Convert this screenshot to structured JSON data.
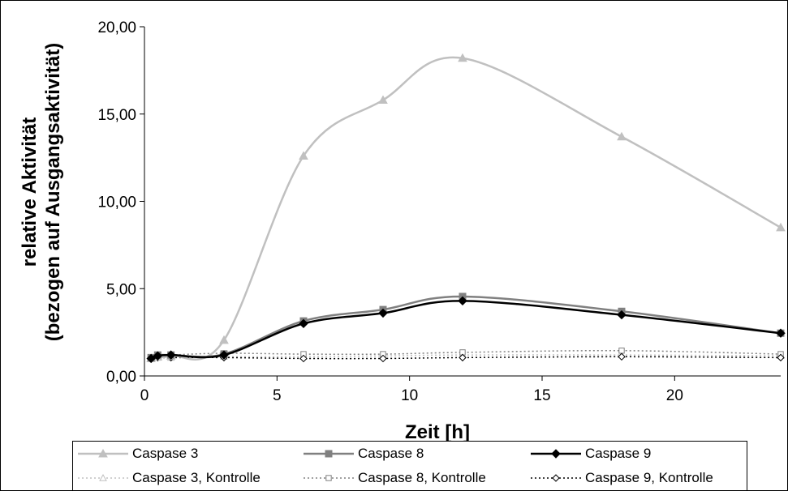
{
  "chart_data": {
    "type": "line",
    "title": "",
    "xlabel": "Zeit [h]",
    "ylabel_line1": "relative Aktivität",
    "ylabel_line2": "(bezogen auf Ausgangsaktivität)",
    "xlim": [
      0,
      24
    ],
    "ylim": [
      0,
      20
    ],
    "x_ticks": [
      0,
      5,
      10,
      15,
      20
    ],
    "y_ticks": [
      0,
      5,
      10,
      15,
      20
    ],
    "y_tick_labels": [
      "0,00",
      "5,00",
      "10,00",
      "15,00",
      "20,00"
    ],
    "grid": false,
    "legend_position": "bottom",
    "series": [
      {
        "name": "Caspase 3",
        "color": "#c0c0c0",
        "dash": "solid",
        "marker": "triangle-filled",
        "x": [
          0.25,
          0.5,
          1,
          3,
          6,
          9,
          12,
          18,
          24
        ],
        "y": [
          1.0,
          1.1,
          1.15,
          2.05,
          12.6,
          15.8,
          18.2,
          13.7,
          8.5
        ]
      },
      {
        "name": "Caspase 8",
        "color": "#808080",
        "dash": "solid",
        "marker": "square-filled",
        "x": [
          0.25,
          0.5,
          1,
          3,
          6,
          9,
          12,
          18,
          24
        ],
        "y": [
          1.05,
          1.2,
          1.2,
          1.25,
          3.15,
          3.8,
          4.55,
          3.7,
          2.45
        ]
      },
      {
        "name": "Caspase 9",
        "color": "#000000",
        "dash": "solid",
        "marker": "diamond-filled",
        "x": [
          0.25,
          0.5,
          1,
          3,
          6,
          9,
          12,
          18,
          24
        ],
        "y": [
          1.0,
          1.15,
          1.2,
          1.2,
          3.0,
          3.6,
          4.3,
          3.5,
          2.45
        ]
      },
      {
        "name": "Caspase 3, Kontrolle",
        "color": "#c0c0c0",
        "dash": "dotted",
        "marker": "triangle-open",
        "x": [
          0.25,
          0.5,
          1,
          3,
          6,
          9,
          12,
          18,
          24
        ],
        "y": [
          1.0,
          1.05,
          1.05,
          1.1,
          1.1,
          1.15,
          1.2,
          1.2,
          1.15
        ]
      },
      {
        "name": "Caspase 8, Kontrolle",
        "color": "#808080",
        "dash": "dotted",
        "marker": "square-open",
        "x": [
          0.25,
          0.5,
          1,
          3,
          6,
          9,
          12,
          18,
          24
        ],
        "y": [
          1.05,
          1.15,
          1.2,
          1.3,
          1.25,
          1.25,
          1.35,
          1.45,
          1.25
        ]
      },
      {
        "name": "Caspase 9, Kontrolle",
        "color": "#000000",
        "dash": "dotted",
        "marker": "diamond-open",
        "x": [
          0.25,
          0.5,
          1,
          3,
          6,
          9,
          12,
          18,
          24
        ],
        "y": [
          1.0,
          1.05,
          1.05,
          1.05,
          1.0,
          1.0,
          1.05,
          1.1,
          1.05
        ]
      }
    ]
  }
}
